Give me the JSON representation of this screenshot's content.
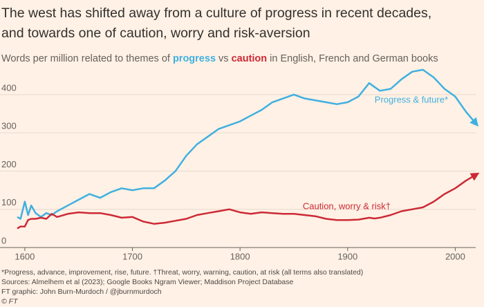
{
  "chart_data": {
    "type": "line",
    "title": [
      "The west has shifted away from a culture of progress in recent decades,",
      "and towards one of caution, worry and risk-aversion"
    ],
    "subtitle": [
      "Words per million related to themes of ",
      "progress",
      " vs ",
      "caution",
      " in English, French and German books"
    ],
    "x": [
      1593,
      1596,
      1600,
      1603,
      1606,
      1610,
      1615,
      1620,
      1625,
      1630,
      1640,
      1650,
      1660,
      1670,
      1680,
      1690,
      1700,
      1710,
      1720,
      1730,
      1740,
      1750,
      1760,
      1770,
      1780,
      1790,
      1800,
      1810,
      1820,
      1830,
      1840,
      1850,
      1860,
      1870,
      1880,
      1890,
      1900,
      1910,
      1920,
      1925,
      1930,
      1940,
      1950,
      1960,
      1970,
      1980,
      1990,
      2000,
      2010,
      2019
    ],
    "series": [
      {
        "name": "Progress & future*",
        "color": "#3fb0e0",
        "values": [
          80,
          75,
          120,
          85,
          110,
          90,
          80,
          90,
          85,
          95,
          110,
          125,
          140,
          130,
          145,
          155,
          150,
          155,
          155,
          175,
          200,
          240,
          270,
          290,
          310,
          320,
          330,
          345,
          360,
          380,
          390,
          400,
          390,
          385,
          380,
          375,
          380,
          395,
          430,
          420,
          410,
          415,
          440,
          460,
          465,
          445,
          415,
          395,
          355,
          325
        ]
      },
      {
        "name": "Caution, worry & risk†",
        "color": "#cc2936",
        "values": [
          50,
          55,
          55,
          72,
          75,
          75,
          78,
          75,
          88,
          80,
          88,
          92,
          90,
          90,
          85,
          78,
          80,
          68,
          62,
          65,
          70,
          75,
          85,
          90,
          95,
          100,
          92,
          88,
          92,
          90,
          88,
          88,
          85,
          82,
          75,
          72,
          72,
          73,
          78,
          76,
          78,
          85,
          95,
          100,
          105,
          120,
          140,
          155,
          175,
          190
        ]
      }
    ],
    "xlim": [
      1593,
      2019
    ],
    "xticks": [
      1600,
      1700,
      1800,
      1900,
      2000
    ],
    "ylim": [
      0,
      480
    ],
    "yticks": [
      0,
      100,
      200,
      300,
      400
    ],
    "grid": true,
    "footnotes": [
      "*Progress, advance, improvement, rise, future. †Threat, worry, warning, caution, at risk (all terms also translated)",
      "Sources: Almelhem et al (2023); Google Books Ngram Viewer; Maddison Project Database",
      "FT graphic: John Burn-Murdoch / @jburnmurdoch",
      "© FT"
    ]
  }
}
